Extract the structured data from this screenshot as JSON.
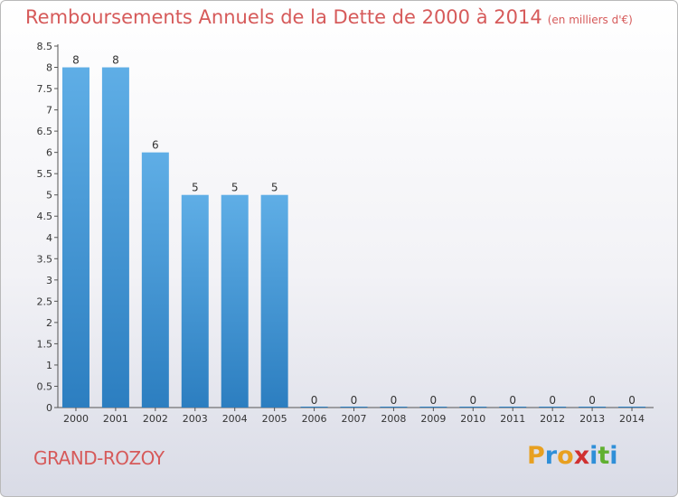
{
  "title": "Remboursements Annuels de la Dette de 2000 à 2014",
  "unit": "(en milliers d'€)",
  "commune": "GRAND-ROZOY",
  "brand": {
    "letters": [
      "P",
      "r",
      "o",
      "x",
      "i",
      "t",
      "i"
    ],
    "colors": [
      "#e8a020",
      "#2f8fd8",
      "#e8a020",
      "#d03030",
      "#2f8fd8",
      "#60b030",
      "#2f8fd8"
    ]
  },
  "colors": {
    "bar_top": "#5faee6",
    "bar_bottom": "#2c7ec0",
    "title": "#d65a5a"
  },
  "chart_data": {
    "type": "bar",
    "title": "Remboursements Annuels de la Dette de 2000 à 2014",
    "categories": [
      "2000",
      "2001",
      "2002",
      "2003",
      "2004",
      "2005",
      "2006",
      "2007",
      "2008",
      "2009",
      "2010",
      "2011",
      "2012",
      "2013",
      "2014"
    ],
    "values": [
      8,
      8,
      6,
      5,
      5,
      5,
      0,
      0,
      0,
      0,
      0,
      0,
      0,
      0,
      0
    ],
    "ylim": [
      0,
      8.5
    ],
    "yticks": [
      "0",
      "0.5",
      "1",
      "1.5",
      "2",
      "2.5",
      "3",
      "3.5",
      "4",
      "4.5",
      "5",
      "5.5",
      "6",
      "6.5",
      "7",
      "7.5",
      "8",
      "8.5"
    ],
    "grid": false,
    "xlabel": "",
    "ylabel": ""
  }
}
